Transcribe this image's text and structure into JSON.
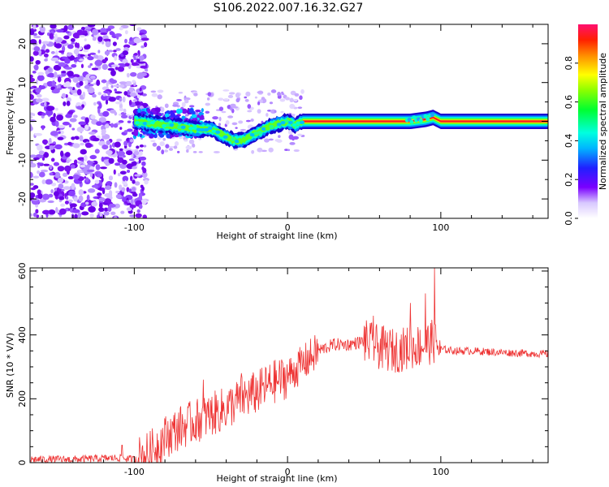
{
  "title": "S106.2022.007.16.32.G27",
  "chart_data": [
    {
      "type": "heatmap",
      "xlabel": "Height of straight line (km)",
      "ylabel": "Frequency (Hz)",
      "xlim": [
        -168,
        170
      ],
      "ylim": [
        -25,
        25
      ],
      "xticks": [
        -100,
        0,
        100
      ],
      "yticks": [
        -20,
        -10,
        0,
        10,
        20
      ],
      "colorbar": {
        "label": "Normalized spectral amplitude",
        "range": [
          0,
          1
        ],
        "ticks": [
          0.0,
          0.2,
          0.4,
          0.6,
          0.8
        ]
      },
      "ridge": {
        "x": [
          -100,
          -90,
          -80,
          -70,
          -60,
          -50,
          -40,
          -35,
          -30,
          -20,
          -10,
          0,
          5,
          10,
          20,
          40,
          60,
          80,
          90,
          95,
          100,
          120,
          140,
          170
        ],
        "y": [
          0,
          -0.5,
          -1,
          -1.5,
          -2,
          -2,
          -4,
          -5,
          -5,
          -3,
          -1,
          0,
          -1,
          0,
          0,
          0,
          0,
          0,
          0.5,
          1,
          0,
          0,
          0,
          0
        ]
      }
    },
    {
      "type": "line",
      "xlabel": "Height of straight line (km)",
      "ylabel": "SNR (10 * V/V)",
      "xlim": [
        -168,
        170
      ],
      "ylim": [
        0,
        610
      ],
      "xticks": [
        -100,
        0,
        100
      ],
      "yticks": [
        0,
        200,
        400,
        600
      ],
      "color": "#ee3333",
      "series": [
        {
          "x": [
            -168,
            -140,
            -110,
            -100,
            -90,
            -80,
            -70,
            -60,
            -50,
            -40,
            -30,
            -20,
            -10,
            0,
            10,
            20,
            30,
            40,
            50,
            60,
            70,
            80,
            90,
            95,
            100,
            110,
            120,
            140,
            170
          ],
          "y": [
            10,
            10,
            15,
            10,
            30,
            80,
            110,
            130,
            150,
            170,
            200,
            220,
            250,
            270,
            310,
            350,
            370,
            370,
            380,
            360,
            350,
            360,
            370,
            380,
            355,
            350,
            350,
            345,
            340
          ]
        }
      ],
      "spikes": [
        {
          "x": -108,
          "y": 55
        },
        {
          "x": -55,
          "y": 260
        },
        {
          "x": -30,
          "y": 280
        },
        {
          "x": 56,
          "y": 460
        },
        {
          "x": 80,
          "y": 500
        },
        {
          "x": 90,
          "y": 530
        },
        {
          "x": 96,
          "y": 610
        }
      ]
    }
  ]
}
